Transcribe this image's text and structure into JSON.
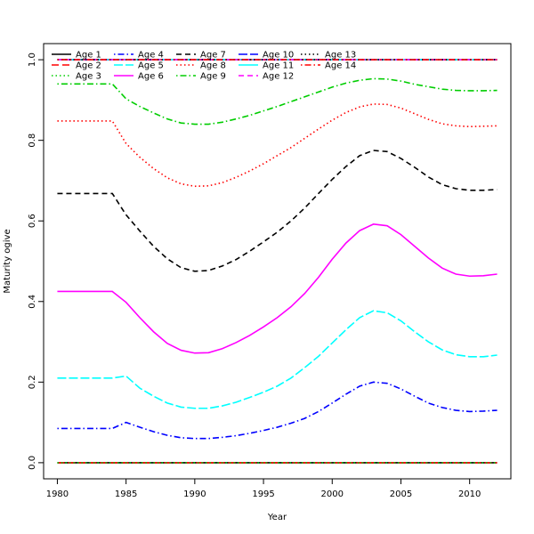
{
  "chart_data": {
    "type": "line",
    "title": "",
    "xlabel": "Year",
    "ylabel": "Maturity ogive",
    "xlim": [
      1979,
      2013
    ],
    "ylim": [
      -0.04,
      1.04
    ],
    "x_ticks": [
      1980,
      1985,
      1990,
      1995,
      2000,
      2005,
      2010
    ],
    "y_ticks": [
      0.0,
      0.2,
      0.4,
      0.6,
      0.8,
      1.0
    ],
    "y_tick_labels": [
      "0.0",
      "0.2",
      "0.4",
      "0.6",
      "0.8",
      "1.0"
    ],
    "legend_position": "top-left",
    "x": [
      1980,
      1981,
      1982,
      1983,
      1984,
      1985,
      1986,
      1987,
      1988,
      1989,
      1990,
      1991,
      1992,
      1993,
      1994,
      1995,
      1996,
      1997,
      1998,
      1999,
      2000,
      2001,
      2002,
      2003,
      2004,
      2005,
      2006,
      2007,
      2008,
      2009,
      2010,
      2011,
      2012
    ],
    "series": [
      {
        "name": "Age 1",
        "color": "#000000",
        "dash": "",
        "values": [
          0,
          0,
          0,
          0,
          0,
          0,
          0,
          0,
          0,
          0,
          0,
          0,
          0,
          0,
          0,
          0,
          0,
          0,
          0,
          0,
          0,
          0,
          0,
          0,
          0,
          0,
          0,
          0,
          0,
          0,
          0,
          0,
          0
        ]
      },
      {
        "name": "Age 2",
        "color": "#ff0000",
        "dash": "8,4",
        "values": [
          0,
          0,
          0,
          0,
          0,
          0,
          0,
          0,
          0,
          0,
          0,
          0,
          0,
          0,
          0,
          0,
          0,
          0,
          0,
          0,
          0,
          0,
          0,
          0,
          0,
          0,
          0,
          0,
          0,
          0,
          0,
          0,
          0
        ]
      },
      {
        "name": "Age 3",
        "color": "#00cd00",
        "dash": "1.5,3",
        "values": [
          0,
          0,
          0,
          0,
          0,
          0,
          0,
          0,
          0,
          0,
          0,
          0,
          0,
          0,
          0,
          0,
          0,
          0,
          0,
          0,
          0,
          0,
          0,
          0,
          0,
          0,
          0,
          0,
          0,
          0,
          0,
          0,
          0
        ]
      },
      {
        "name": "Age 4",
        "color": "#0000ff",
        "dash": "1.5,3,7,3",
        "values": [
          0.085,
          0.085,
          0.085,
          0.085,
          0.085,
          0.1,
          0.088,
          0.077,
          0.068,
          0.062,
          0.06,
          0.06,
          0.063,
          0.067,
          0.073,
          0.08,
          0.088,
          0.098,
          0.11,
          0.127,
          0.148,
          0.17,
          0.19,
          0.2,
          0.197,
          0.183,
          0.165,
          0.148,
          0.137,
          0.13,
          0.127,
          0.128,
          0.13
        ]
      },
      {
        "name": "Age 5",
        "color": "#00ffff",
        "dash": "10,3",
        "values": [
          0.21,
          0.21,
          0.21,
          0.21,
          0.21,
          0.215,
          0.185,
          0.165,
          0.148,
          0.138,
          0.135,
          0.135,
          0.141,
          0.15,
          0.162,
          0.175,
          0.19,
          0.21,
          0.236,
          0.264,
          0.297,
          0.33,
          0.36,
          0.377,
          0.372,
          0.352,
          0.325,
          0.3,
          0.28,
          0.268,
          0.263,
          0.263,
          0.267
        ]
      },
      {
        "name": "Age 6",
        "color": "#ff00ff",
        "dash": "",
        "values": [
          0.425,
          0.425,
          0.425,
          0.425,
          0.425,
          0.398,
          0.36,
          0.325,
          0.296,
          0.279,
          0.272,
          0.273,
          0.283,
          0.298,
          0.316,
          0.337,
          0.36,
          0.387,
          0.42,
          0.46,
          0.505,
          0.545,
          0.576,
          0.592,
          0.588,
          0.566,
          0.537,
          0.508,
          0.483,
          0.468,
          0.463,
          0.464,
          0.468
        ]
      },
      {
        "name": "Age 7",
        "color": "#000000",
        "dash": "6,4",
        "values": [
          0.668,
          0.668,
          0.668,
          0.668,
          0.668,
          0.615,
          0.575,
          0.537,
          0.506,
          0.484,
          0.475,
          0.477,
          0.488,
          0.504,
          0.525,
          0.548,
          0.572,
          0.6,
          0.632,
          0.668,
          0.703,
          0.735,
          0.762,
          0.775,
          0.772,
          0.755,
          0.733,
          0.709,
          0.69,
          0.68,
          0.676,
          0.676,
          0.678
        ]
      },
      {
        "name": "Age 8",
        "color": "#ff0000",
        "dash": "1.5,3",
        "values": [
          0.848,
          0.848,
          0.848,
          0.848,
          0.848,
          0.792,
          0.758,
          0.73,
          0.707,
          0.692,
          0.686,
          0.687,
          0.695,
          0.708,
          0.724,
          0.742,
          0.762,
          0.782,
          0.805,
          0.828,
          0.85,
          0.869,
          0.883,
          0.89,
          0.889,
          0.88,
          0.866,
          0.852,
          0.841,
          0.836,
          0.834,
          0.835,
          0.836
        ]
      },
      {
        "name": "Age 9",
        "color": "#00cd00",
        "dash": "1.5,3,7,3",
        "values": [
          0.94,
          0.94,
          0.94,
          0.94,
          0.94,
          0.903,
          0.884,
          0.868,
          0.853,
          0.843,
          0.84,
          0.84,
          0.845,
          0.853,
          0.862,
          0.873,
          0.884,
          0.896,
          0.908,
          0.92,
          0.932,
          0.942,
          0.949,
          0.953,
          0.952,
          0.947,
          0.939,
          0.933,
          0.927,
          0.924,
          0.923,
          0.923,
          0.924
        ]
      },
      {
        "name": "Age 10",
        "color": "#0000ff",
        "dash": "10,3",
        "values": [
          1,
          1,
          1,
          1,
          1,
          1,
          1,
          1,
          1,
          1,
          1,
          1,
          1,
          1,
          1,
          1,
          1,
          1,
          1,
          1,
          1,
          1,
          1,
          1,
          1,
          1,
          1,
          1,
          1,
          1,
          1,
          1,
          1
        ]
      },
      {
        "name": "Age 11",
        "color": "#00ffff",
        "dash": "",
        "values": [
          1,
          1,
          1,
          1,
          1,
          1,
          1,
          1,
          1,
          1,
          1,
          1,
          1,
          1,
          1,
          1,
          1,
          1,
          1,
          1,
          1,
          1,
          1,
          1,
          1,
          1,
          1,
          1,
          1,
          1,
          1,
          1,
          1
        ]
      },
      {
        "name": "Age 12",
        "color": "#ff00ff",
        "dash": "6,4",
        "values": [
          1,
          1,
          1,
          1,
          1,
          1,
          1,
          1,
          1,
          1,
          1,
          1,
          1,
          1,
          1,
          1,
          1,
          1,
          1,
          1,
          1,
          1,
          1,
          1,
          1,
          1,
          1,
          1,
          1,
          1,
          1,
          1,
          1
        ]
      },
      {
        "name": "Age 13",
        "color": "#000000",
        "dash": "1.5,3",
        "values": [
          1,
          1,
          1,
          1,
          1,
          1,
          1,
          1,
          1,
          1,
          1,
          1,
          1,
          1,
          1,
          1,
          1,
          1,
          1,
          1,
          1,
          1,
          1,
          1,
          1,
          1,
          1,
          1,
          1,
          1,
          1,
          1,
          1
        ]
      },
      {
        "name": "Age 14",
        "color": "#ff0000",
        "dash": "1.5,3,7,3",
        "values": [
          1,
          1,
          1,
          1,
          1,
          1,
          1,
          1,
          1,
          1,
          1,
          1,
          1,
          1,
          1,
          1,
          1,
          1,
          1,
          1,
          1,
          1,
          1,
          1,
          1,
          1,
          1,
          1,
          1,
          1,
          1,
          1,
          1
        ]
      }
    ]
  }
}
